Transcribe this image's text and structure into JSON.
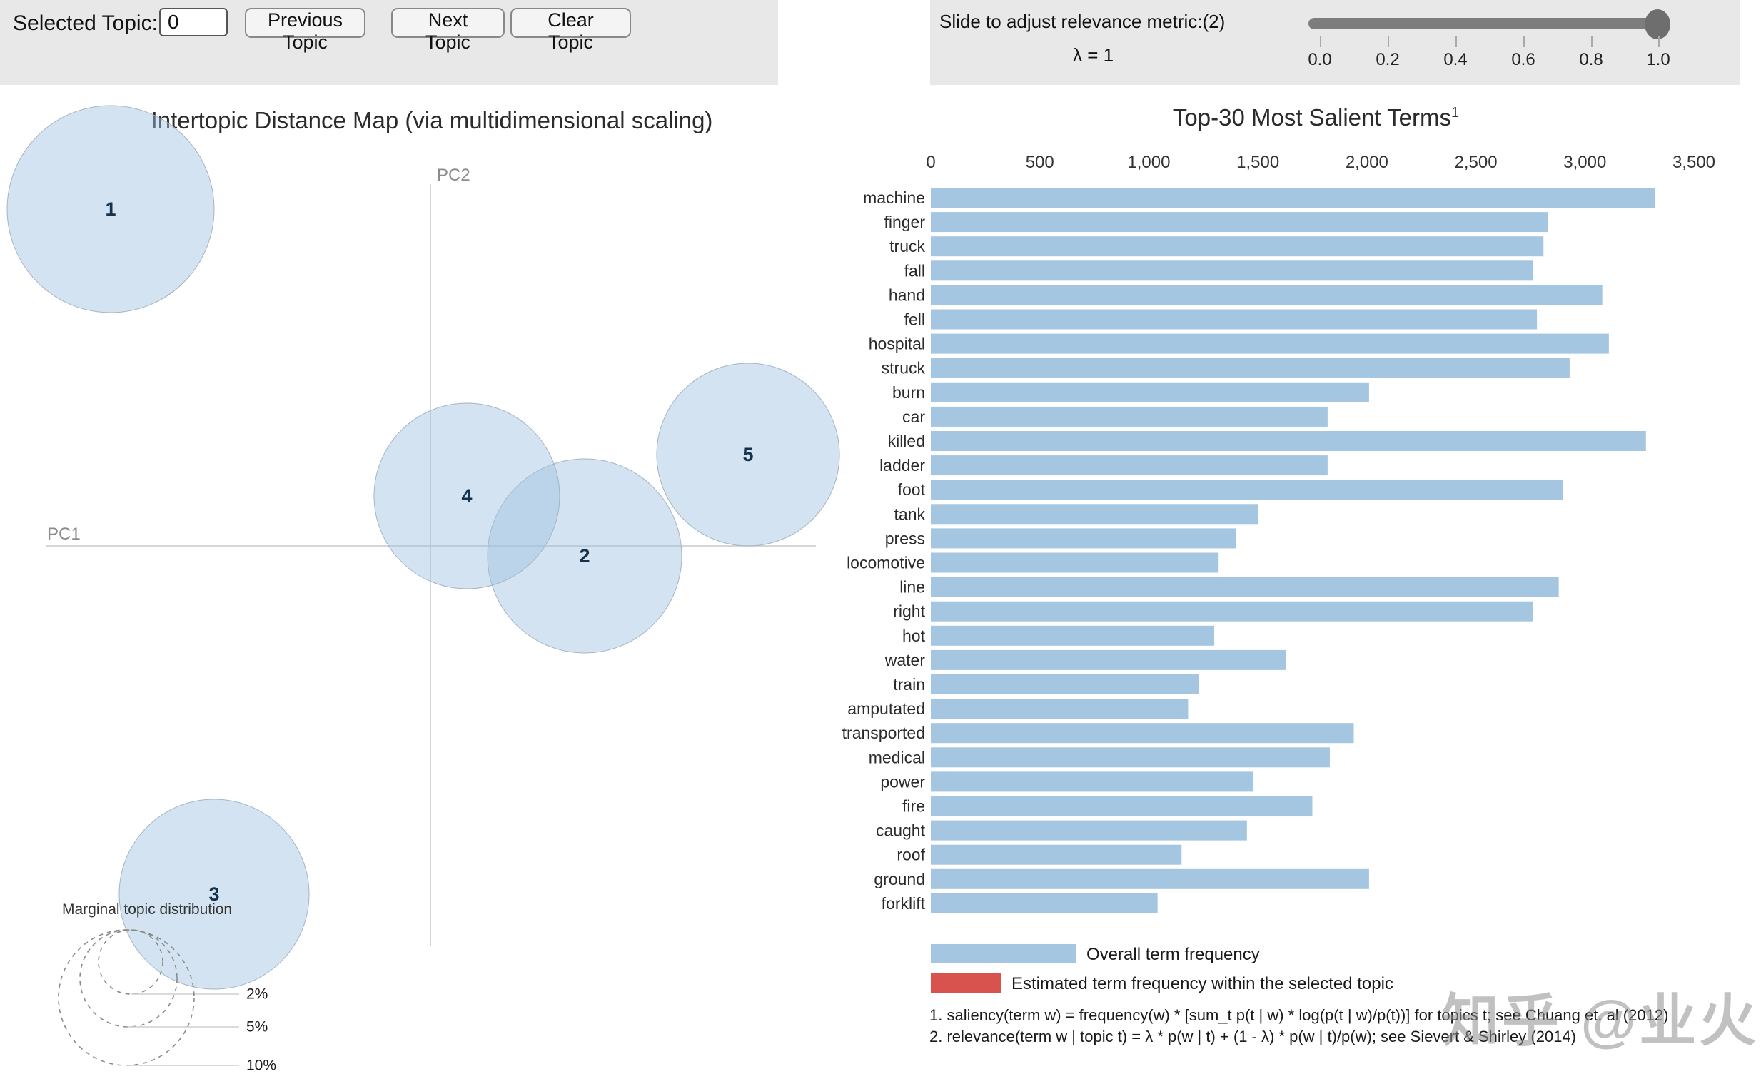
{
  "controls": {
    "selected_topic_label": "Selected Topic:",
    "selected_topic_value": "0",
    "previous_button": "Previous Topic",
    "next_button": "Next Topic",
    "clear_button": "Clear Topic",
    "slider_label": "Slide to adjust relevance metric:(2)",
    "lambda_label": "λ = 1",
    "slider_ticks": [
      "0.0",
      "0.2",
      "0.4",
      "0.6",
      "0.8",
      "1.0"
    ],
    "slider_value": "1.0"
  },
  "map": {
    "title": "Intertopic Distance Map (via multidimensional scaling)",
    "xlabel": "PC1",
    "ylabel": "PC2",
    "marginal_legend_title": "Marginal topic distribution"
  },
  "chart_data": [
    {
      "type": "scatter",
      "title": "Intertopic Distance Map (via multidimensional scaling)",
      "xlabel": "PC1",
      "ylabel": "PC2",
      "points": [
        {
          "label": "1",
          "cx": 155,
          "cy": 293,
          "r": 145
        },
        {
          "label": "2",
          "cx": 819,
          "cy": 779,
          "r": 136
        },
        {
          "label": "3",
          "cx": 300,
          "cy": 1253,
          "r": 133
        },
        {
          "label": "4",
          "cx": 654,
          "cy": 695,
          "r": 130
        },
        {
          "label": "5",
          "cx": 1048,
          "cy": 637,
          "r": 128
        }
      ],
      "size_legend": {
        "title": "Marginal topic distribution",
        "labels": [
          "2%",
          "5%",
          "10%"
        ]
      }
    },
    {
      "type": "bar",
      "orientation": "horizontal",
      "title": "Top-30 Most Salient Terms",
      "title_superscript": "1",
      "categories": [
        "machine",
        "finger",
        "truck",
        "fall",
        "hand",
        "fell",
        "hospital",
        "struck",
        "burn",
        "car",
        "killed",
        "ladder",
        "foot",
        "tank",
        "press",
        "locomotive",
        "line",
        "right",
        "hot",
        "water",
        "train",
        "amputated",
        "transported",
        "medical",
        "power",
        "fire",
        "caught",
        "roof",
        "ground",
        "forklift"
      ],
      "values": [
        3320,
        2830,
        2810,
        2760,
        3080,
        2780,
        3110,
        2930,
        2010,
        1820,
        3280,
        1820,
        2900,
        1500,
        1400,
        1320,
        2880,
        2760,
        1300,
        1630,
        1230,
        1180,
        1940,
        1830,
        1480,
        1750,
        1450,
        1150,
        2010,
        1040
      ],
      "xlim": [
        0,
        3500
      ],
      "xtick_values": [
        0,
        500,
        1000,
        1500,
        2000,
        2500,
        3000,
        3500
      ],
      "xtick_labels": [
        "0",
        "500",
        "1,000",
        "1,500",
        "2,000",
        "2,500",
        "3,000",
        "3,500"
      ],
      "bar_color": "#a4c6e0",
      "grid": false,
      "legend_position": "bottom"
    }
  ],
  "legend": {
    "items": [
      {
        "color": "#a4c6e0",
        "label": "Overall term frequency"
      },
      {
        "color": "#d9534e",
        "label": "Estimated term frequency within the selected topic"
      }
    ]
  },
  "footnotes": [
    "1. saliency(term w) = frequency(w) * [sum_t p(t | w) * log(p(t | w)/p(t))] for topics t; see Chuang et. al (2012)",
    "2. relevance(term w | topic t) = λ * p(w | t) + (1 - λ) * p(w | t)/p(w); see Sievert & Shirley (2014)"
  ],
  "watermark": "知乎 @业火",
  "colors": {
    "panel_bg": "#e8e8e8",
    "bar_blue": "#a4c6e0",
    "legend_red": "#d9534e",
    "circle_fill": "rgba(158,193,224,0.45)",
    "circle_stroke": "#a3b4c2",
    "topic_label": "#16324a",
    "axis_gray": "#c8c8c8"
  }
}
